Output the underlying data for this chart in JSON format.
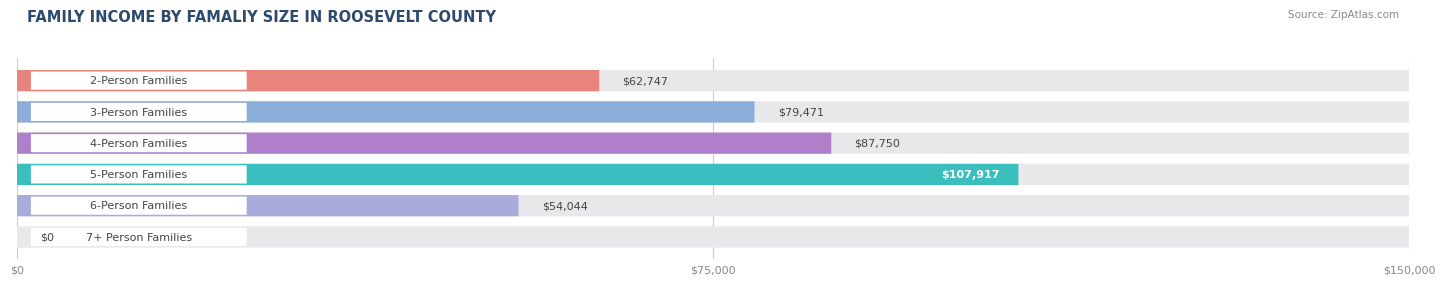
{
  "title": "FAMILY INCOME BY FAMALIY SIZE IN ROOSEVELT COUNTY",
  "source": "Source: ZipAtlas.com",
  "categories": [
    "2-Person Families",
    "3-Person Families",
    "4-Person Families",
    "5-Person Families",
    "6-Person Families",
    "7+ Person Families"
  ],
  "values": [
    62747,
    79471,
    87750,
    107917,
    54044,
    0
  ],
  "bar_colors": [
    "#E8847C",
    "#8BADD9",
    "#B07FCA",
    "#3BBFBE",
    "#A9ABDB",
    "#F5AABF"
  ],
  "label_colors": [
    "#444444",
    "#444444",
    "#444444",
    "#ffffff",
    "#444444",
    "#444444"
  ],
  "value_labels": [
    "$62,747",
    "$79,471",
    "$87,750",
    "$107,917",
    "$54,044",
    "$0"
  ],
  "value_inside": [
    false,
    false,
    false,
    true,
    false,
    false
  ],
  "xlim": [
    0,
    150000
  ],
  "xticks": [
    0,
    75000,
    150000
  ],
  "xticklabels": [
    "$0",
    "$75,000",
    "$150,000"
  ],
  "background_color": "#ffffff",
  "bar_bg_color": "#e8e8eb",
  "title_fontsize": 10.5,
  "source_fontsize": 7.5,
  "bar_height": 0.68,
  "label_fontsize": 8,
  "value_fontsize": 8
}
